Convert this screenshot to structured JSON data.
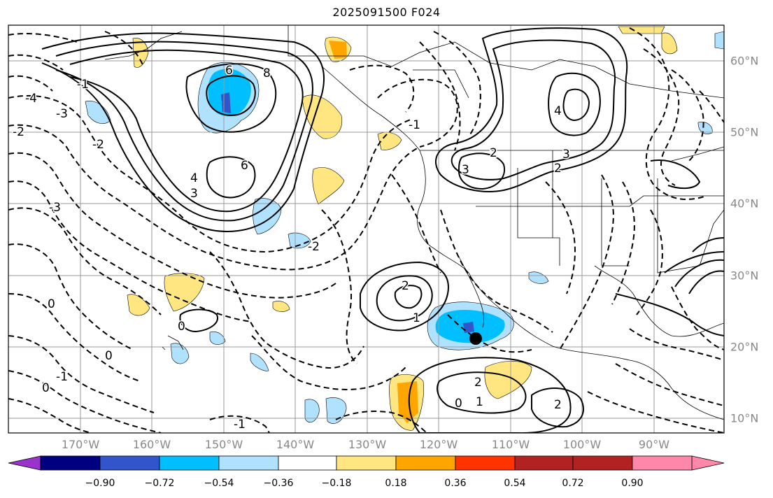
{
  "title": "2025091500 F024",
  "map": {
    "longitude_labels": [
      "170°W",
      "160°W",
      "150°W",
      "140°W",
      "130°W",
      "120°W",
      "110°W",
      "100°W",
      "90°W"
    ],
    "latitude_labels": [
      "60°N",
      "50°N",
      "40°N",
      "30°N",
      "20°N",
      "10°N"
    ],
    "contour_labels": [
      "6",
      "8",
      "6",
      "4",
      "3",
      "2",
      "3",
      "2",
      "3",
      "4",
      "2",
      "1",
      "0",
      "2",
      "2",
      "1",
      "0",
      "-1",
      "-1",
      "-2",
      "-3",
      "-3",
      "-4",
      "-1",
      "0",
      "0",
      "0",
      "-1",
      "-2",
      "-2"
    ],
    "marker": "black-dot"
  },
  "colorbar": {
    "labels": [
      "−0.90",
      "−0.72",
      "−0.54",
      "−0.36",
      "−0.18",
      "0.18",
      "0.36",
      "0.54",
      "0.72",
      "0.90"
    ],
    "colors": [
      "#9933cc",
      "#000080",
      "#3355cc",
      "#00bfff",
      "#b0e2ff",
      "#ffffff",
      "#ffe680",
      "#ffa500",
      "#ff3300",
      "#b22222",
      "#ff88aa"
    ]
  }
}
